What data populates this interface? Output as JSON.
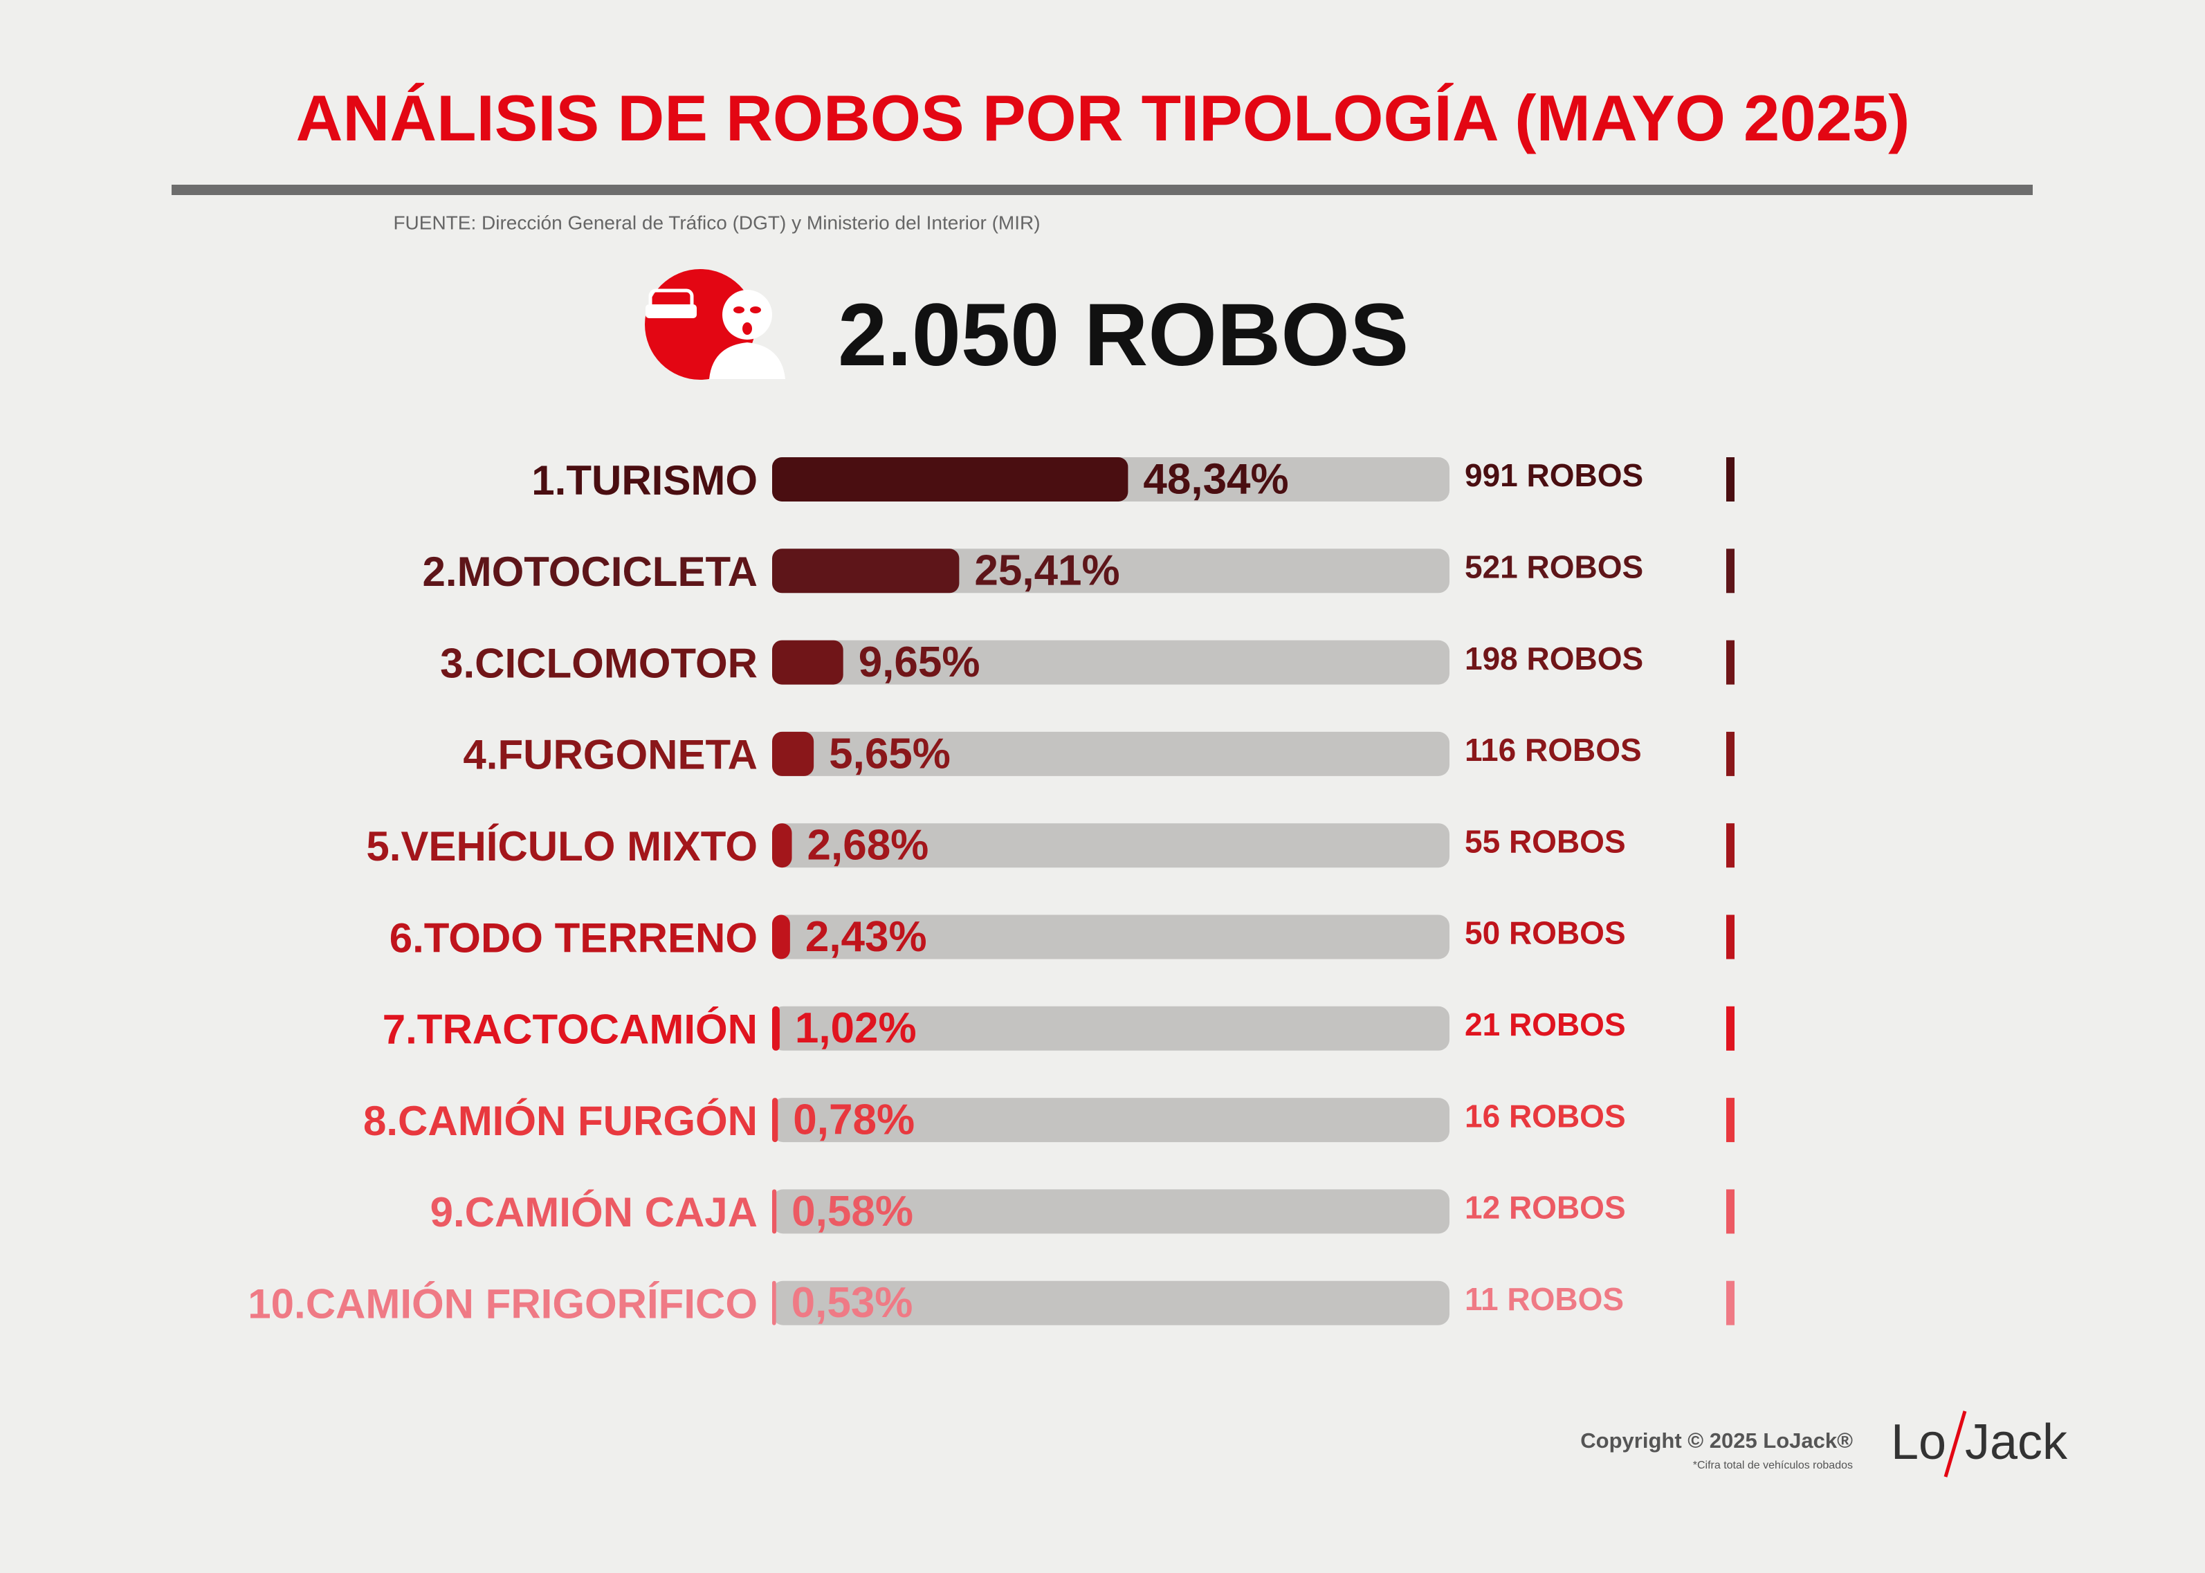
{
  "chart_data": {
    "type": "bar",
    "orientation": "horizontal",
    "title": "ANÁLISIS DE ROBOS POR TIPOLOGÍA (MAYO 2025)",
    "subtitle": "FUENTE: Dirección General de Tráfico (DGT) y Ministerio del Interior (MIR)",
    "headline": "2.050 ROBOS",
    "categories": [
      "1.TURISMO",
      "2.MOTOCICLETA",
      "3.CICLOMOTOR",
      "4.FURGONETA",
      "5.VEHÍCULO MIXTO",
      "6.TODO TERRENO",
      "7.TRACTOCAMIÓN",
      "8.CAMIÓN FURGÓN",
      "9.CAMIÓN CAJA",
      "10.CAMIÓN FRIGORÍFICO"
    ],
    "values": [
      48.34,
      25.41,
      9.65,
      5.65,
      2.68,
      2.43,
      1.02,
      0.78,
      0.58,
      0.53
    ],
    "value_labels": [
      "48,34%",
      "25,41%",
      "9,65%",
      "5,65%",
      "2,68%",
      "2,43%",
      "1,02%",
      "0,78%",
      "0,58%",
      "0,53%"
    ],
    "count_labels": [
      "991 ROBOS",
      "521 ROBOS",
      "198 ROBOS",
      "116 ROBOS",
      "55 ROBOS",
      "50 ROBOS",
      "21 ROBOS",
      "16 ROBOS",
      "12 ROBOS",
      "11 ROBOS"
    ],
    "colors": [
      "#4a0e11",
      "#5e1519",
      "#701518",
      "#8a171a",
      "#a3161b",
      "#c0141c",
      "#e0141f",
      "#e8383e",
      "#ec5a63",
      "#ef7a85"
    ],
    "xlim": [
      0,
      92
    ]
  },
  "footer": {
    "copyright": "Copyright © 2025 LoJack®",
    "note": "*Cifra total de vehículos robados",
    "logo_left": "Lo",
    "logo_right": "Jack"
  }
}
